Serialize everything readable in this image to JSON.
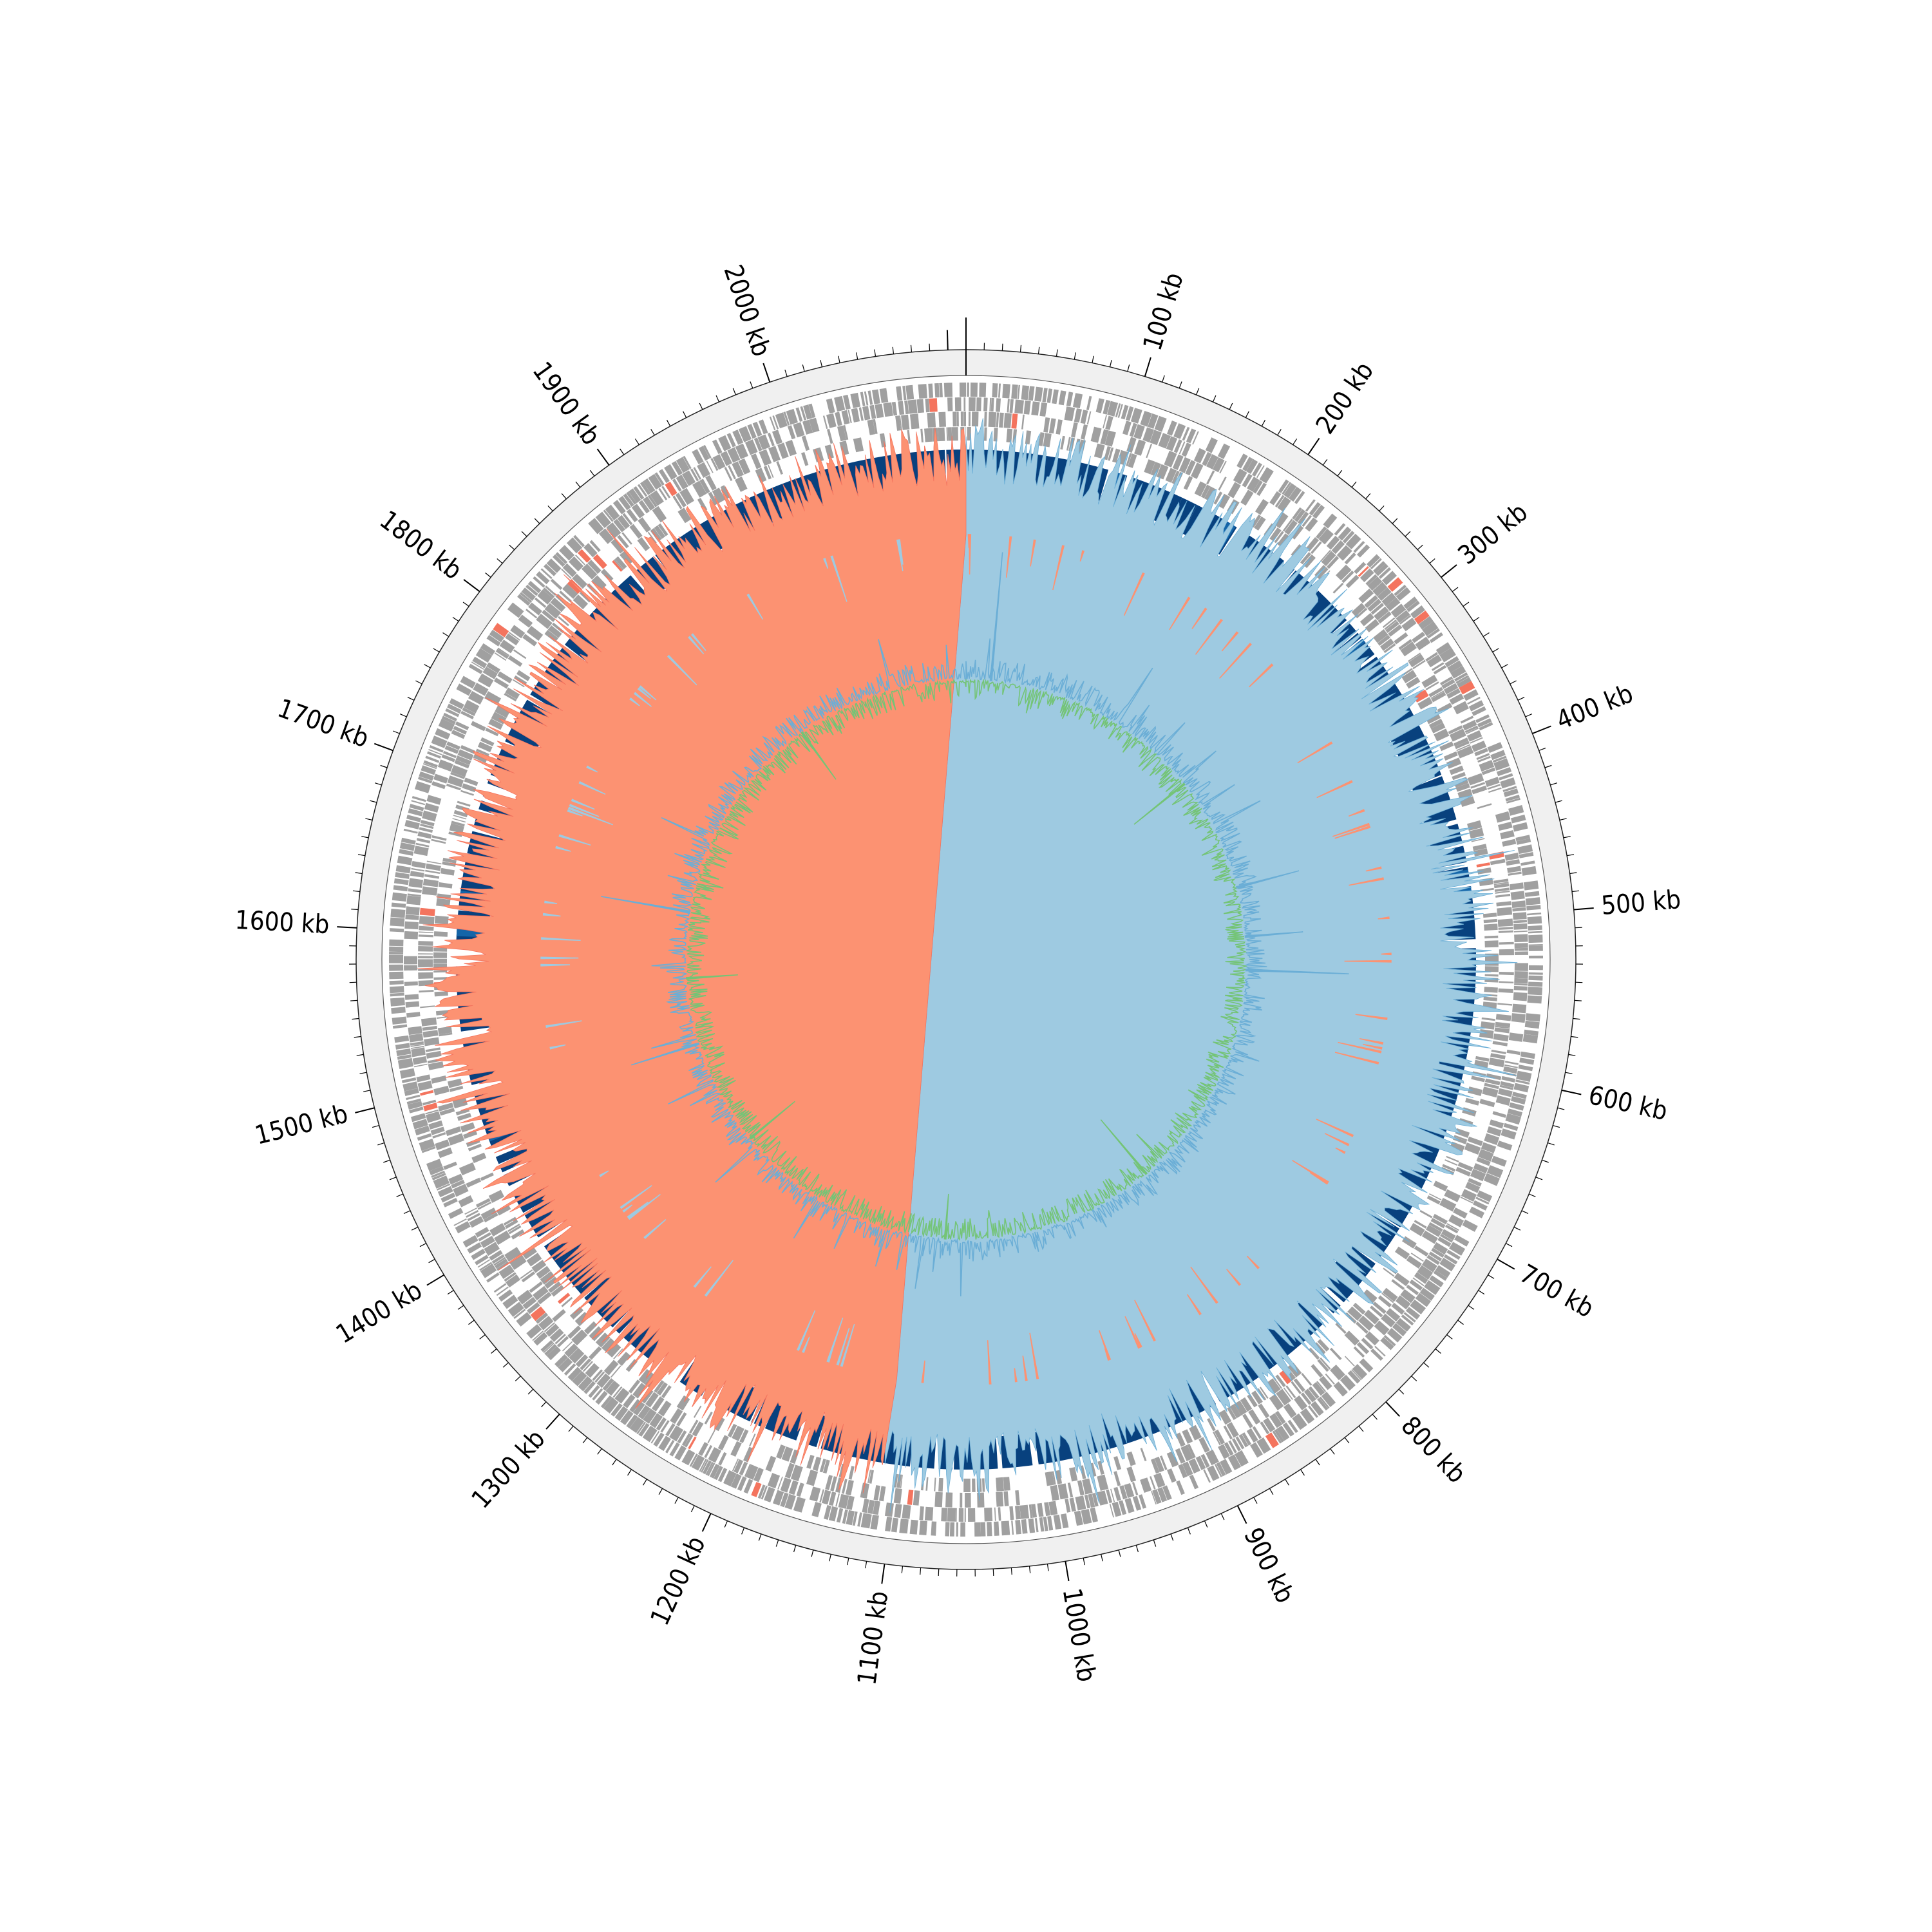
{
  "chart_data": {
    "type": "circular-genome",
    "title": "",
    "genome_length_kb": 2110,
    "tick_unit": "kb",
    "major_ticks_kb": [
      100,
      200,
      300,
      400,
      500,
      600,
      700,
      800,
      900,
      1000,
      1100,
      1200,
      1300,
      1400,
      1500,
      1600,
      1700,
      1800,
      1900,
      2000
    ],
    "tick_labels": [
      "100 kb",
      "200 kb",
      "300 kb",
      "400 kb",
      "500 kb",
      "600 kb",
      "700 kb",
      "800 kb",
      "900 kb",
      "1000 kb",
      "1100 kb",
      "1200 kb",
      "1300 kb",
      "1400 kb",
      "1500 kb",
      "1600 kb",
      "1700 kb",
      "1800 kb",
      "1900 kb",
      "2000 kb"
    ],
    "minor_tick_step_kb": 10,
    "tracks": [
      {
        "name": "",
        "kind": "features",
        "color": "#a0a0a0",
        "accent_color": "#f4745e",
        "note_density": "dense gene features on both strands across whole genome"
      },
      {
        "name": "",
        "kind": "blocks",
        "color": "#08417e",
        "accent_color": "#1565a8",
        "blocks_kb": [
          [
            0,
            95
          ],
          [
            99,
            108
          ],
          [
            112,
            147
          ],
          [
            147,
            158
          ],
          [
            158,
            162
          ],
          [
            165,
            188
          ],
          [
            192,
            217
          ],
          [
            219,
            226
          ],
          [
            229,
            235
          ],
          [
            236,
            255
          ],
          [
            256,
            283
          ],
          [
            286,
            293
          ],
          [
            294,
            298
          ],
          [
            299,
            312
          ],
          [
            314,
            331
          ],
          [
            333,
            403
          ],
          [
            404,
            434
          ],
          [
            437,
            449
          ],
          [
            452,
            463
          ],
          [
            466,
            475
          ],
          [
            479,
            514
          ],
          [
            520,
            684
          ],
          [
            692,
            713
          ],
          [
            714,
            740
          ],
          [
            742,
            775
          ],
          [
            778,
            785
          ],
          [
            794,
            880
          ],
          [
            883,
            962
          ],
          [
            963,
            975
          ],
          [
            977,
            981
          ],
          [
            983,
            1002
          ],
          [
            1002,
            1007
          ],
          [
            1011,
            1031
          ],
          [
            1034,
            1063
          ],
          [
            1064,
            1073
          ],
          [
            1076,
            1087
          ],
          [
            1092,
            1152
          ],
          [
            1155,
            1161
          ],
          [
            1169,
            1191
          ],
          [
            1193,
            1196
          ],
          [
            1198,
            1199
          ],
          [
            1200,
            1201
          ],
          [
            1202,
            1227
          ],
          [
            1238,
            1255
          ],
          [
            1280,
            1302
          ],
          [
            1306,
            1310
          ],
          [
            1312,
            1339
          ],
          [
            1342,
            1382
          ],
          [
            1389,
            1406
          ],
          [
            1408,
            1423
          ],
          [
            1428,
            1436
          ],
          [
            1438,
            1443
          ],
          [
            1444,
            1449
          ],
          [
            1456,
            1494
          ],
          [
            1499,
            1530
          ],
          [
            1535,
            1578
          ],
          [
            1590,
            1615
          ],
          [
            1618,
            1648
          ],
          [
            1653,
            1668
          ],
          [
            1672,
            1681
          ],
          [
            1683,
            1689
          ],
          [
            1692,
            1695
          ],
          [
            1701,
            1704
          ],
          [
            1707,
            1727
          ],
          [
            1731,
            1762
          ],
          [
            1766,
            1779
          ],
          [
            1783,
            1804
          ],
          [
            1806,
            1869
          ],
          [
            1872,
            1888
          ],
          [
            1890,
            2096
          ],
          [
            2097,
            2110
          ]
        ]
      },
      {
        "name": "",
        "kind": "gc-skew",
        "positive_color": "#9ecae1",
        "negative_color": "#fc9272",
        "note": "positive from 0 to ~1110 kb, negative from ~1110 kb to 2110 kb"
      },
      {
        "name": "",
        "kind": "gc-content",
        "above_color": "#6baed6",
        "below_color": "#74c476"
      }
    ],
    "ring_background": "#f0f0f0",
    "legend": "none"
  }
}
